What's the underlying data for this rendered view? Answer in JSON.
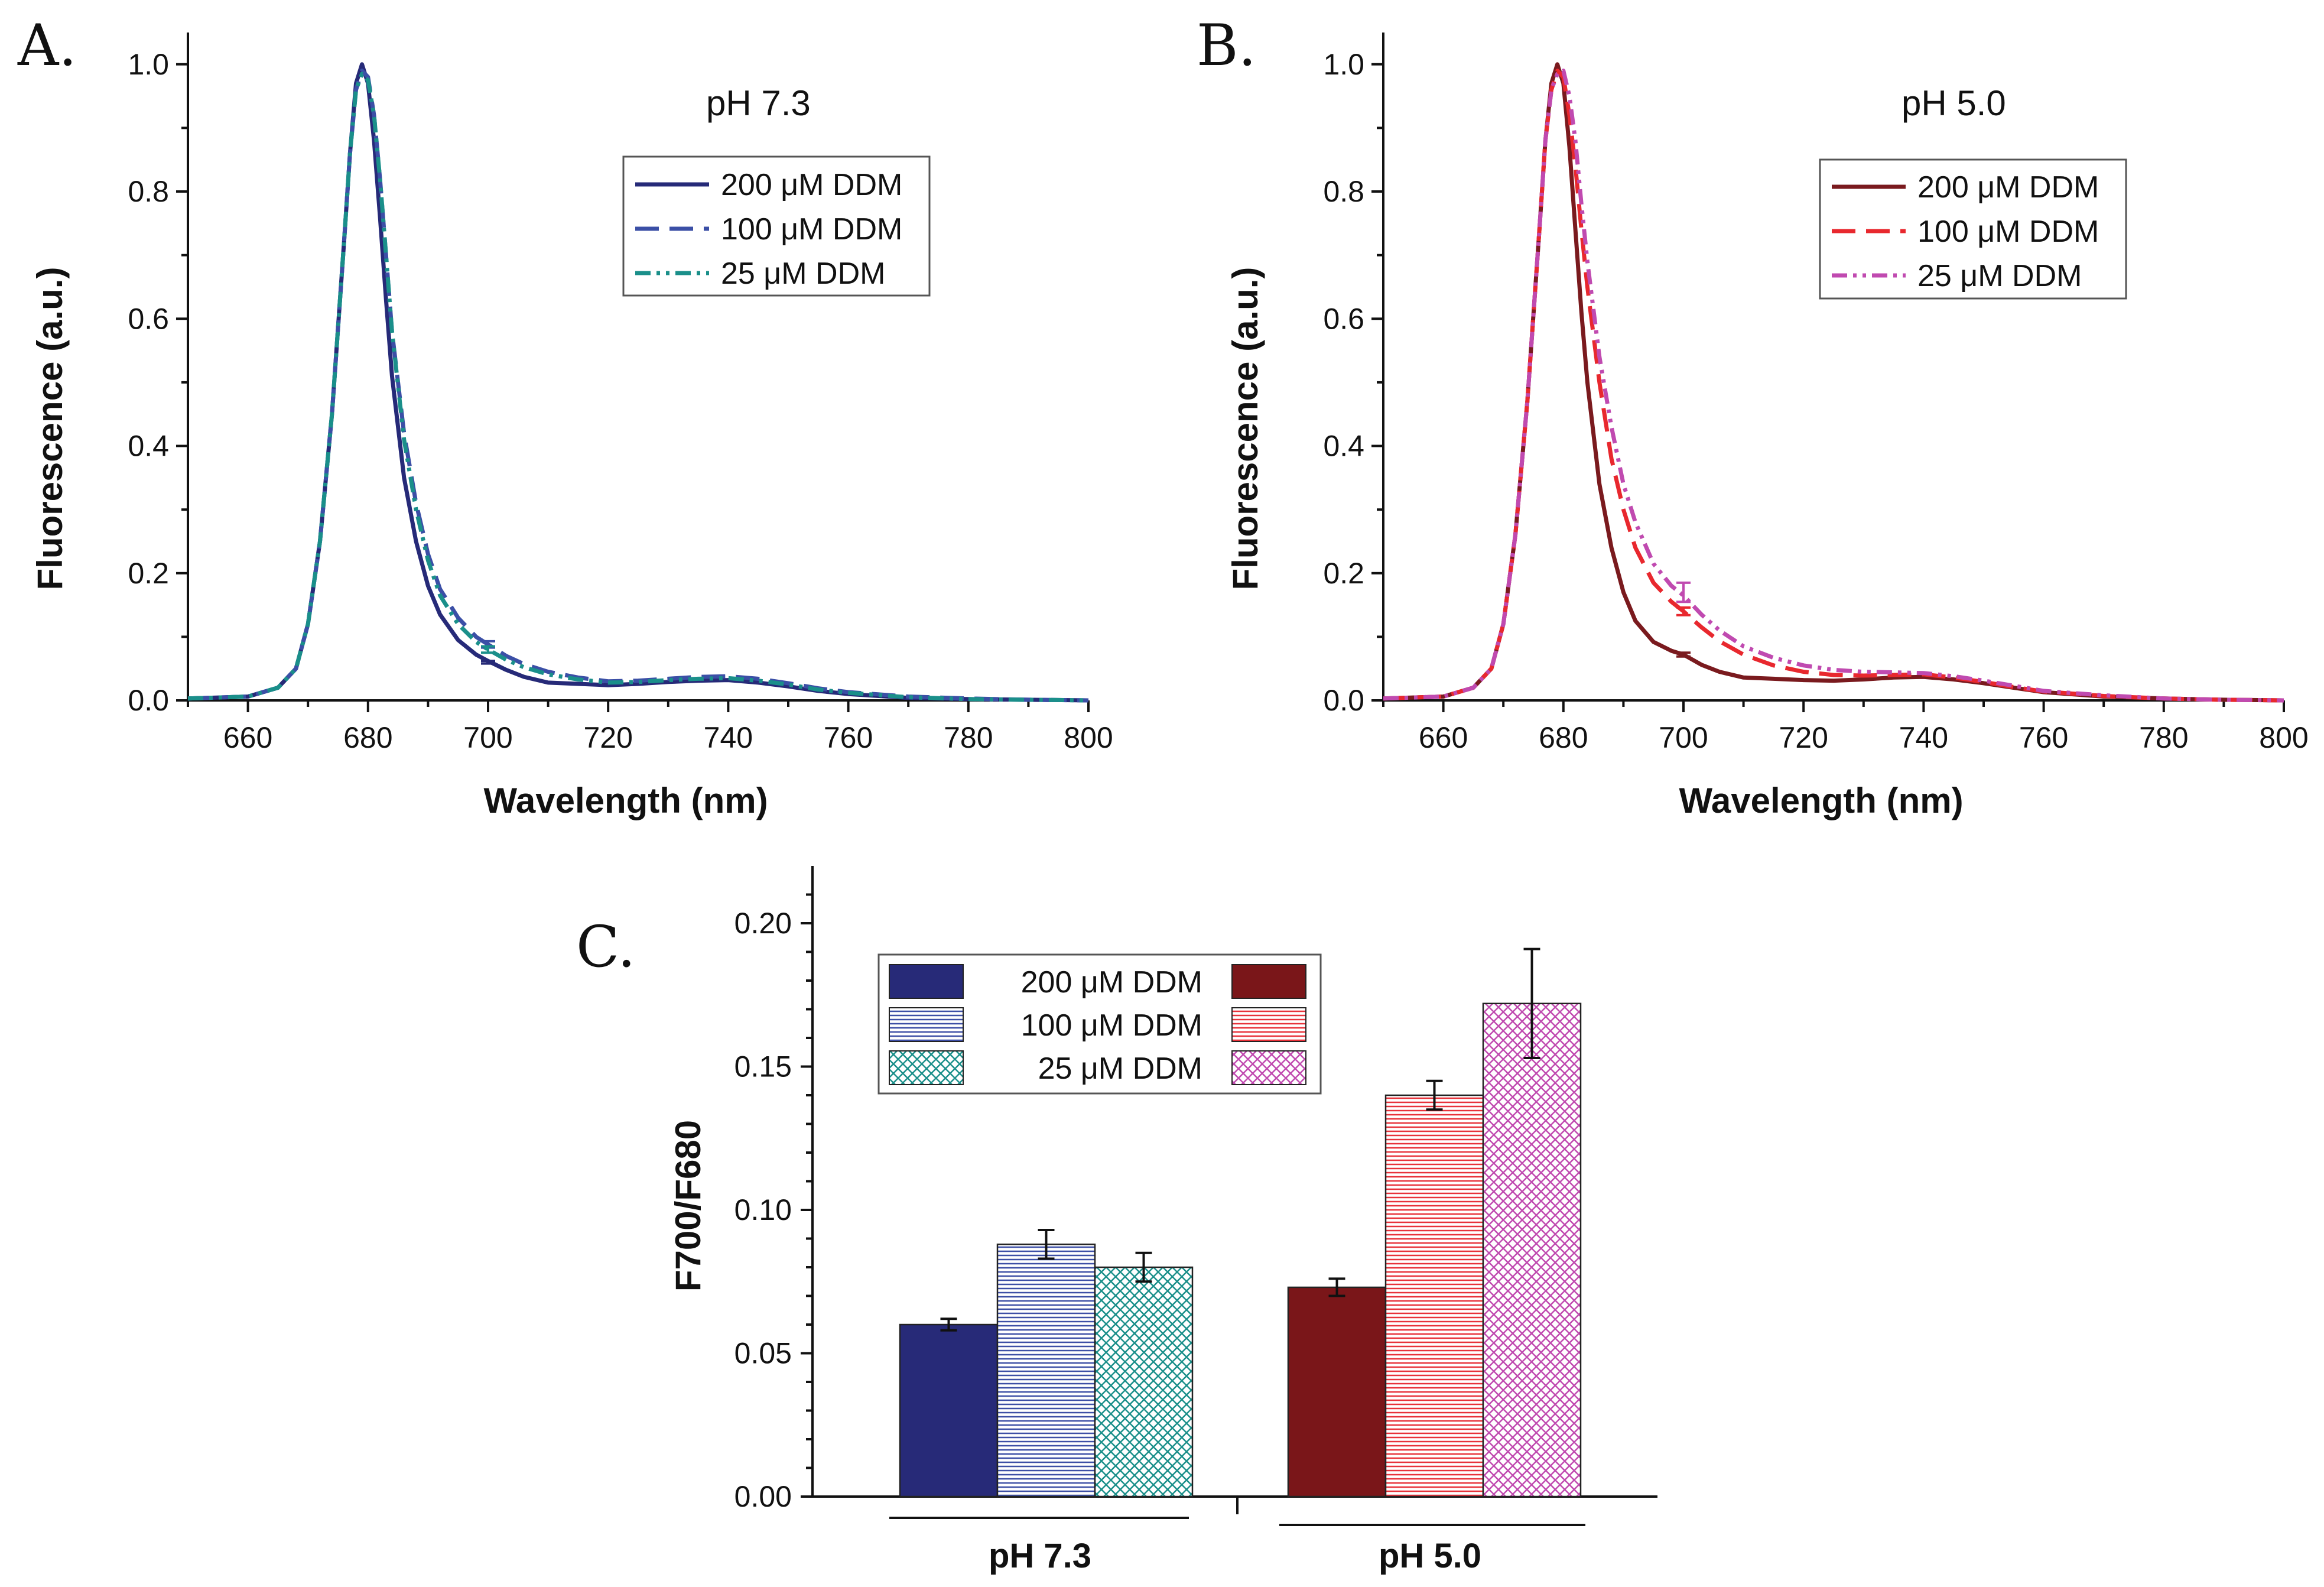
{
  "chart_data": [
    {
      "panel": "A.",
      "type": "line",
      "title": "pH 7.3",
      "xlabel": "Wavelength (nm)",
      "ylabel": "Fluorescence (a.u.)",
      "xlim": [
        650,
        800
      ],
      "ylim": [
        0,
        1.05
      ],
      "x_ticks": [
        "660",
        "680",
        "700",
        "720",
        "740",
        "760",
        "780",
        "800"
      ],
      "y_ticks": [
        "0.0",
        "0.2",
        "0.4",
        "0.6",
        "0.8",
        "1.0"
      ],
      "legend": "top-right",
      "series": [
        {
          "name": "200 μM DDM",
          "color": "#262a78",
          "dash": "solid",
          "x": [
            650,
            660,
            665,
            668,
            670,
            672,
            674,
            676,
            677,
            678,
            679,
            680,
            681,
            682,
            683,
            684,
            686,
            688,
            690,
            692,
            695,
            698,
            700,
            703,
            706,
            710,
            715,
            720,
            725,
            730,
            735,
            740,
            745,
            750,
            755,
            760,
            770,
            780,
            790,
            800
          ],
          "y": [
            0.003,
            0.006,
            0.02,
            0.05,
            0.12,
            0.25,
            0.45,
            0.72,
            0.86,
            0.97,
            1.0,
            0.97,
            0.88,
            0.76,
            0.63,
            0.51,
            0.35,
            0.25,
            0.18,
            0.135,
            0.095,
            0.072,
            0.062,
            0.048,
            0.037,
            0.028,
            0.026,
            0.024,
            0.026,
            0.029,
            0.031,
            0.032,
            0.028,
            0.022,
            0.015,
            0.01,
            0.004,
            0.002,
            0.001,
            0.0
          ],
          "error_bar": {
            "x": 700,
            "y": 0.06,
            "err": 0.002
          }
        },
        {
          "name": "100 μM DDM",
          "color": "#3b4fa6",
          "dash": "dash",
          "x": [
            650,
            660,
            665,
            668,
            670,
            672,
            674,
            676,
            677,
            678,
            679,
            680,
            681,
            682,
            683,
            684,
            686,
            688,
            690,
            692,
            695,
            698,
            700,
            703,
            706,
            710,
            715,
            720,
            725,
            730,
            735,
            740,
            745,
            750,
            755,
            760,
            770,
            780,
            790,
            800
          ],
          "y": [
            0.003,
            0.006,
            0.02,
            0.05,
            0.12,
            0.25,
            0.45,
            0.72,
            0.86,
            0.96,
            0.99,
            0.98,
            0.92,
            0.82,
            0.7,
            0.58,
            0.42,
            0.31,
            0.23,
            0.175,
            0.13,
            0.1,
            0.088,
            0.07,
            0.057,
            0.045,
            0.036,
            0.03,
            0.031,
            0.034,
            0.037,
            0.038,
            0.034,
            0.027,
            0.019,
            0.013,
            0.006,
            0.003,
            0.001,
            0.0
          ],
          "error_bar": {
            "x": 700,
            "y": 0.088,
            "err": 0.005
          }
        },
        {
          "name": "25 μM DDM",
          "color": "#1a8f8a",
          "dash": "dash-dot-dot",
          "x": [
            650,
            660,
            665,
            668,
            670,
            672,
            674,
            676,
            677,
            678,
            679,
            680,
            681,
            682,
            683,
            684,
            686,
            688,
            690,
            692,
            695,
            698,
            700,
            703,
            706,
            710,
            715,
            720,
            725,
            730,
            735,
            740,
            745,
            750,
            755,
            760,
            770,
            780,
            790,
            800
          ],
          "y": [
            0.003,
            0.006,
            0.02,
            0.05,
            0.12,
            0.25,
            0.45,
            0.72,
            0.86,
            0.96,
            0.985,
            0.975,
            0.92,
            0.82,
            0.7,
            0.58,
            0.41,
            0.3,
            0.22,
            0.165,
            0.12,
            0.092,
            0.08,
            0.064,
            0.052,
            0.041,
            0.033,
            0.028,
            0.029,
            0.032,
            0.034,
            0.035,
            0.031,
            0.025,
            0.017,
            0.012,
            0.005,
            0.002,
            0.001,
            0.0
          ],
          "error_bar": {
            "x": 700,
            "y": 0.08,
            "err": 0.005
          }
        }
      ]
    },
    {
      "panel": "B.",
      "type": "line",
      "title": "pH 5.0",
      "xlabel": "Wavelength (nm)",
      "ylabel": "Fluorescence (a.u.)",
      "xlim": [
        650,
        800
      ],
      "ylim": [
        0,
        1.05
      ],
      "x_ticks": [
        "660",
        "680",
        "700",
        "720",
        "740",
        "760",
        "780",
        "800"
      ],
      "y_ticks": [
        "0.0",
        "0.2",
        "0.4",
        "0.6",
        "0.8",
        "1.0"
      ],
      "legend": "top-right",
      "series": [
        {
          "name": "200 μM DDM",
          "color": "#7a1a1e",
          "dash": "solid",
          "x": [
            650,
            660,
            665,
            668,
            670,
            672,
            674,
            676,
            677,
            678,
            679,
            680,
            681,
            682,
            683,
            684,
            686,
            688,
            690,
            692,
            695,
            698,
            700,
            703,
            706,
            710,
            715,
            720,
            725,
            730,
            735,
            740,
            745,
            750,
            755,
            760,
            770,
            780,
            790,
            800
          ],
          "y": [
            0.003,
            0.006,
            0.02,
            0.05,
            0.12,
            0.26,
            0.47,
            0.74,
            0.88,
            0.97,
            1.0,
            0.97,
            0.87,
            0.74,
            0.61,
            0.5,
            0.34,
            0.24,
            0.17,
            0.125,
            0.092,
            0.078,
            0.072,
            0.056,
            0.045,
            0.036,
            0.034,
            0.032,
            0.031,
            0.033,
            0.036,
            0.037,
            0.033,
            0.027,
            0.02,
            0.013,
            0.006,
            0.003,
            0.001,
            0.0
          ],
          "error_bar": {
            "x": 700,
            "y": 0.072,
            "err": 0.003
          }
        },
        {
          "name": "100 μM DDM",
          "color": "#e8282e",
          "dash": "dash",
          "x": [
            650,
            660,
            665,
            668,
            670,
            672,
            674,
            676,
            677,
            678,
            679,
            680,
            681,
            682,
            683,
            684,
            686,
            688,
            690,
            692,
            695,
            698,
            700,
            703,
            706,
            710,
            715,
            720,
            725,
            730,
            735,
            740,
            745,
            750,
            755,
            760,
            770,
            780,
            790,
            800
          ],
          "y": [
            0.003,
            0.006,
            0.02,
            0.05,
            0.12,
            0.26,
            0.47,
            0.74,
            0.88,
            0.96,
            0.99,
            0.98,
            0.92,
            0.84,
            0.74,
            0.65,
            0.5,
            0.38,
            0.3,
            0.24,
            0.185,
            0.155,
            0.14,
            0.115,
            0.093,
            0.072,
            0.055,
            0.045,
            0.04,
            0.039,
            0.04,
            0.041,
            0.036,
            0.029,
            0.021,
            0.014,
            0.007,
            0.003,
            0.001,
            0.0
          ],
          "error_bar": {
            "x": 700,
            "y": 0.14,
            "err": 0.006
          }
        },
        {
          "name": "25 μM DDM",
          "color": "#c04ab0",
          "dash": "dash-dot-dot",
          "x": [
            650,
            660,
            665,
            668,
            670,
            672,
            674,
            676,
            677,
            678,
            679,
            680,
            681,
            682,
            683,
            684,
            686,
            688,
            690,
            692,
            695,
            698,
            700,
            703,
            706,
            710,
            715,
            720,
            725,
            730,
            735,
            740,
            745,
            750,
            755,
            760,
            770,
            780,
            790,
            800
          ],
          "y": [
            0.003,
            0.006,
            0.02,
            0.05,
            0.12,
            0.26,
            0.47,
            0.74,
            0.88,
            0.96,
            0.985,
            0.99,
            0.95,
            0.88,
            0.78,
            0.69,
            0.54,
            0.43,
            0.34,
            0.28,
            0.215,
            0.18,
            0.165,
            0.135,
            0.11,
            0.085,
            0.067,
            0.055,
            0.048,
            0.045,
            0.044,
            0.043,
            0.038,
            0.031,
            0.023,
            0.015,
            0.008,
            0.003,
            0.001,
            0.0
          ],
          "error_bar": {
            "x": 700,
            "y": 0.17,
            "err": 0.015
          }
        }
      ]
    },
    {
      "panel": "C.",
      "type": "bar",
      "title": "",
      "xlabel": "",
      "ylabel": "F700/F680",
      "ylim": [
        0,
        0.22
      ],
      "y_ticks": [
        "0.00",
        "0.05",
        "0.10",
        "0.15",
        "0.20"
      ],
      "categories": [
        "pH 7.3",
        "pH 5.0"
      ],
      "legend": "top-left",
      "series": [
        {
          "name": "200 μM DDM",
          "pattern": "solid",
          "colors": [
            "#272a78",
            "#7a1619"
          ],
          "values": [
            0.06,
            0.073
          ],
          "errors": [
            0.002,
            0.003
          ]
        },
        {
          "name": "100 μM DDM",
          "pattern": "horizontal",
          "colors": [
            "#3d4fa6",
            "#e8323a"
          ],
          "values": [
            0.088,
            0.14
          ],
          "errors": [
            0.005,
            0.005
          ]
        },
        {
          "name": "25 μM DDM",
          "pattern": "crosshatch",
          "colors": [
            "#1a8f8a",
            "#c04ab0"
          ],
          "values": [
            0.08,
            0.172
          ],
          "errors": [
            0.005,
            0.019
          ]
        }
      ]
    }
  ]
}
